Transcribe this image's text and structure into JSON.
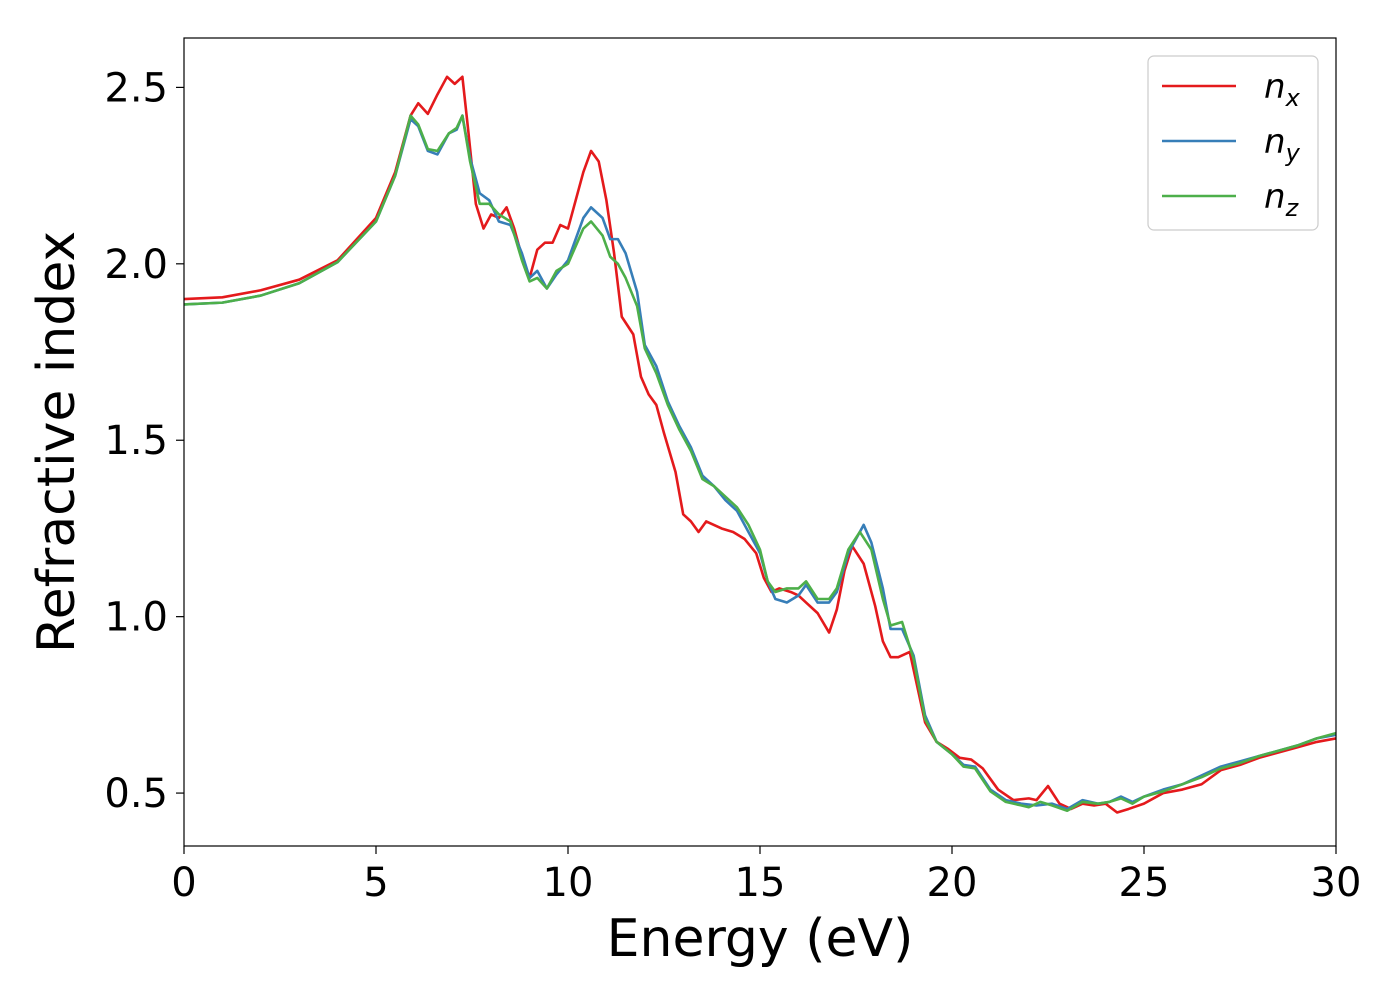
{
  "chart_data": {
    "type": "line",
    "title": "",
    "xlabel": "Energy (eV)",
    "ylabel": "Refractive index",
    "xlim": [
      0,
      30
    ],
    "ylim": [
      0.35,
      2.64
    ],
    "xticks": [
      0,
      5,
      10,
      15,
      20,
      25,
      30
    ],
    "yticks": [
      0.5,
      1.0,
      1.5,
      2.0,
      2.5
    ],
    "xtick_labels": [
      "0",
      "5",
      "10",
      "15",
      "20",
      "25",
      "30"
    ],
    "ytick_labels": [
      "0.5",
      "1.0",
      "1.5",
      "2.0",
      "2.5"
    ],
    "grid": false,
    "legend": "top-right",
    "series": [
      {
        "name": "n",
        "subscript": "x",
        "color": "#e41a1c",
        "points": [
          [
            0,
            1.9
          ],
          [
            1,
            1.905
          ],
          [
            2,
            1.925
          ],
          [
            3,
            1.955
          ],
          [
            4,
            2.01
          ],
          [
            5,
            2.13
          ],
          [
            5.5,
            2.26
          ],
          [
            5.9,
            2.42
          ],
          [
            6.1,
            2.455
          ],
          [
            6.35,
            2.425
          ],
          [
            6.6,
            2.48
          ],
          [
            6.85,
            2.53
          ],
          [
            7.05,
            2.51
          ],
          [
            7.25,
            2.53
          ],
          [
            7.4,
            2.38
          ],
          [
            7.6,
            2.17
          ],
          [
            7.8,
            2.1
          ],
          [
            8.0,
            2.14
          ],
          [
            8.2,
            2.13
          ],
          [
            8.4,
            2.16
          ],
          [
            8.6,
            2.1
          ],
          [
            8.8,
            2.02
          ],
          [
            9.0,
            1.96
          ],
          [
            9.2,
            2.04
          ],
          [
            9.4,
            2.06
          ],
          [
            9.6,
            2.06
          ],
          [
            9.8,
            2.11
          ],
          [
            10.0,
            2.1
          ],
          [
            10.2,
            2.18
          ],
          [
            10.4,
            2.26
          ],
          [
            10.6,
            2.32
          ],
          [
            10.8,
            2.29
          ],
          [
            11.0,
            2.18
          ],
          [
            11.2,
            2.03
          ],
          [
            11.4,
            1.85
          ],
          [
            11.7,
            1.8
          ],
          [
            11.9,
            1.68
          ],
          [
            12.1,
            1.63
          ],
          [
            12.3,
            1.6
          ],
          [
            12.5,
            1.52
          ],
          [
            12.8,
            1.41
          ],
          [
            13.0,
            1.29
          ],
          [
            13.2,
            1.27
          ],
          [
            13.4,
            1.24
          ],
          [
            13.6,
            1.27
          ],
          [
            13.8,
            1.26
          ],
          [
            14.0,
            1.25
          ],
          [
            14.3,
            1.24
          ],
          [
            14.6,
            1.22
          ],
          [
            14.9,
            1.18
          ],
          [
            15.1,
            1.11
          ],
          [
            15.3,
            1.07
          ],
          [
            15.5,
            1.08
          ],
          [
            15.8,
            1.07
          ],
          [
            16.0,
            1.06
          ],
          [
            16.2,
            1.04
          ],
          [
            16.5,
            1.01
          ],
          [
            16.8,
            0.955
          ],
          [
            17.0,
            1.02
          ],
          [
            17.2,
            1.13
          ],
          [
            17.4,
            1.2
          ],
          [
            17.7,
            1.15
          ],
          [
            18.0,
            1.03
          ],
          [
            18.2,
            0.93
          ],
          [
            18.4,
            0.885
          ],
          [
            18.6,
            0.885
          ],
          [
            18.9,
            0.9
          ],
          [
            19.1,
            0.8
          ],
          [
            19.3,
            0.7
          ],
          [
            19.6,
            0.645
          ],
          [
            19.9,
            0.625
          ],
          [
            20.2,
            0.6
          ],
          [
            20.5,
            0.595
          ],
          [
            20.8,
            0.57
          ],
          [
            21.2,
            0.51
          ],
          [
            21.6,
            0.48
          ],
          [
            22.0,
            0.485
          ],
          [
            22.2,
            0.48
          ],
          [
            22.5,
            0.52
          ],
          [
            22.8,
            0.47
          ],
          [
            23.1,
            0.455
          ],
          [
            23.4,
            0.47
          ],
          [
            23.7,
            0.465
          ],
          [
            24.0,
            0.47
          ],
          [
            24.3,
            0.445
          ],
          [
            24.6,
            0.455
          ],
          [
            25.0,
            0.47
          ],
          [
            25.5,
            0.5
          ],
          [
            26.0,
            0.51
          ],
          [
            26.5,
            0.525
          ],
          [
            27.0,
            0.565
          ],
          [
            27.5,
            0.58
          ],
          [
            28.0,
            0.6
          ],
          [
            28.5,
            0.615
          ],
          [
            29.0,
            0.63
          ],
          [
            29.5,
            0.645
          ],
          [
            30.0,
            0.655
          ]
        ]
      },
      {
        "name": "n",
        "subscript": "y",
        "color": "#377eb8",
        "points": [
          [
            0,
            1.885
          ],
          [
            1,
            1.89
          ],
          [
            2,
            1.91
          ],
          [
            3,
            1.945
          ],
          [
            4,
            2.005
          ],
          [
            5,
            2.12
          ],
          [
            5.5,
            2.25
          ],
          [
            5.9,
            2.41
          ],
          [
            6.1,
            2.39
          ],
          [
            6.35,
            2.32
          ],
          [
            6.6,
            2.31
          ],
          [
            6.9,
            2.37
          ],
          [
            7.1,
            2.38
          ],
          [
            7.25,
            2.42
          ],
          [
            7.45,
            2.3
          ],
          [
            7.7,
            2.2
          ],
          [
            7.95,
            2.18
          ],
          [
            8.2,
            2.12
          ],
          [
            8.5,
            2.11
          ],
          [
            8.8,
            2.03
          ],
          [
            9.0,
            1.96
          ],
          [
            9.2,
            1.98
          ],
          [
            9.45,
            1.93
          ],
          [
            9.7,
            1.97
          ],
          [
            10.0,
            2.01
          ],
          [
            10.2,
            2.07
          ],
          [
            10.4,
            2.13
          ],
          [
            10.6,
            2.16
          ],
          [
            10.9,
            2.13
          ],
          [
            11.1,
            2.07
          ],
          [
            11.3,
            2.07
          ],
          [
            11.5,
            2.03
          ],
          [
            11.8,
            1.92
          ],
          [
            12.0,
            1.77
          ],
          [
            12.3,
            1.71
          ],
          [
            12.6,
            1.61
          ],
          [
            12.9,
            1.54
          ],
          [
            13.2,
            1.48
          ],
          [
            13.5,
            1.4
          ],
          [
            13.8,
            1.37
          ],
          [
            14.1,
            1.33
          ],
          [
            14.4,
            1.3
          ],
          [
            14.7,
            1.24
          ],
          [
            15.0,
            1.18
          ],
          [
            15.2,
            1.1
          ],
          [
            15.4,
            1.05
          ],
          [
            15.7,
            1.04
          ],
          [
            16.0,
            1.06
          ],
          [
            16.2,
            1.09
          ],
          [
            16.5,
            1.04
          ],
          [
            16.8,
            1.04
          ],
          [
            17.0,
            1.07
          ],
          [
            17.3,
            1.18
          ],
          [
            17.7,
            1.26
          ],
          [
            17.9,
            1.21
          ],
          [
            18.2,
            1.08
          ],
          [
            18.4,
            0.965
          ],
          [
            18.7,
            0.965
          ],
          [
            19.0,
            0.89
          ],
          [
            19.3,
            0.72
          ],
          [
            19.6,
            0.645
          ],
          [
            20.0,
            0.61
          ],
          [
            20.3,
            0.58
          ],
          [
            20.6,
            0.575
          ],
          [
            21.0,
            0.51
          ],
          [
            21.4,
            0.48
          ],
          [
            21.8,
            0.47
          ],
          [
            22.2,
            0.465
          ],
          [
            22.6,
            0.47
          ],
          [
            23.0,
            0.455
          ],
          [
            23.4,
            0.48
          ],
          [
            23.8,
            0.47
          ],
          [
            24.1,
            0.475
          ],
          [
            24.4,
            0.49
          ],
          [
            24.7,
            0.475
          ],
          [
            25.0,
            0.49
          ],
          [
            25.5,
            0.51
          ],
          [
            26.0,
            0.525
          ],
          [
            26.5,
            0.55
          ],
          [
            27.0,
            0.575
          ],
          [
            27.5,
            0.59
          ],
          [
            28.0,
            0.605
          ],
          [
            28.5,
            0.62
          ],
          [
            29.0,
            0.635
          ],
          [
            29.5,
            0.655
          ],
          [
            30.0,
            0.665
          ]
        ]
      },
      {
        "name": "n",
        "subscript": "z",
        "color": "#4daf4a",
        "points": [
          [
            0,
            1.885
          ],
          [
            1,
            1.89
          ],
          [
            2,
            1.91
          ],
          [
            3,
            1.945
          ],
          [
            4,
            2.005
          ],
          [
            5,
            2.12
          ],
          [
            5.5,
            2.25
          ],
          [
            5.9,
            2.42
          ],
          [
            6.1,
            2.395
          ],
          [
            6.35,
            2.325
          ],
          [
            6.6,
            2.32
          ],
          [
            6.9,
            2.37
          ],
          [
            7.1,
            2.385
          ],
          [
            7.25,
            2.42
          ],
          [
            7.45,
            2.29
          ],
          [
            7.7,
            2.17
          ],
          [
            7.95,
            2.17
          ],
          [
            8.2,
            2.14
          ],
          [
            8.5,
            2.12
          ],
          [
            8.8,
            2.01
          ],
          [
            9.0,
            1.95
          ],
          [
            9.2,
            1.96
          ],
          [
            9.45,
            1.93
          ],
          [
            9.7,
            1.98
          ],
          [
            10.0,
            2.0
          ],
          [
            10.2,
            2.05
          ],
          [
            10.4,
            2.1
          ],
          [
            10.6,
            2.12
          ],
          [
            10.9,
            2.08
          ],
          [
            11.1,
            2.02
          ],
          [
            11.3,
            2.0
          ],
          [
            11.5,
            1.96
          ],
          [
            11.8,
            1.88
          ],
          [
            12.0,
            1.76
          ],
          [
            12.3,
            1.69
          ],
          [
            12.6,
            1.6
          ],
          [
            12.9,
            1.53
          ],
          [
            13.2,
            1.47
          ],
          [
            13.5,
            1.39
          ],
          [
            13.8,
            1.37
          ],
          [
            14.1,
            1.34
          ],
          [
            14.4,
            1.31
          ],
          [
            14.7,
            1.26
          ],
          [
            15.0,
            1.19
          ],
          [
            15.2,
            1.1
          ],
          [
            15.4,
            1.07
          ],
          [
            15.7,
            1.08
          ],
          [
            16.0,
            1.08
          ],
          [
            16.2,
            1.1
          ],
          [
            16.5,
            1.05
          ],
          [
            16.8,
            1.05
          ],
          [
            17.0,
            1.08
          ],
          [
            17.3,
            1.19
          ],
          [
            17.6,
            1.24
          ],
          [
            17.9,
            1.19
          ],
          [
            18.2,
            1.05
          ],
          [
            18.4,
            0.975
          ],
          [
            18.7,
            0.985
          ],
          [
            19.0,
            0.88
          ],
          [
            19.3,
            0.71
          ],
          [
            19.6,
            0.645
          ],
          [
            20.0,
            0.61
          ],
          [
            20.3,
            0.575
          ],
          [
            20.6,
            0.57
          ],
          [
            21.0,
            0.505
          ],
          [
            21.4,
            0.475
          ],
          [
            21.8,
            0.465
          ],
          [
            22.0,
            0.46
          ],
          [
            22.3,
            0.475
          ],
          [
            22.6,
            0.465
          ],
          [
            23.0,
            0.45
          ],
          [
            23.4,
            0.475
          ],
          [
            23.8,
            0.47
          ],
          [
            24.1,
            0.475
          ],
          [
            24.4,
            0.485
          ],
          [
            24.7,
            0.47
          ],
          [
            25.0,
            0.49
          ],
          [
            25.5,
            0.505
          ],
          [
            26.0,
            0.525
          ],
          [
            26.5,
            0.545
          ],
          [
            27.0,
            0.57
          ],
          [
            27.5,
            0.585
          ],
          [
            28.0,
            0.605
          ],
          [
            28.5,
            0.62
          ],
          [
            29.0,
            0.635
          ],
          [
            29.5,
            0.655
          ],
          [
            30.0,
            0.67
          ]
        ]
      }
    ]
  }
}
